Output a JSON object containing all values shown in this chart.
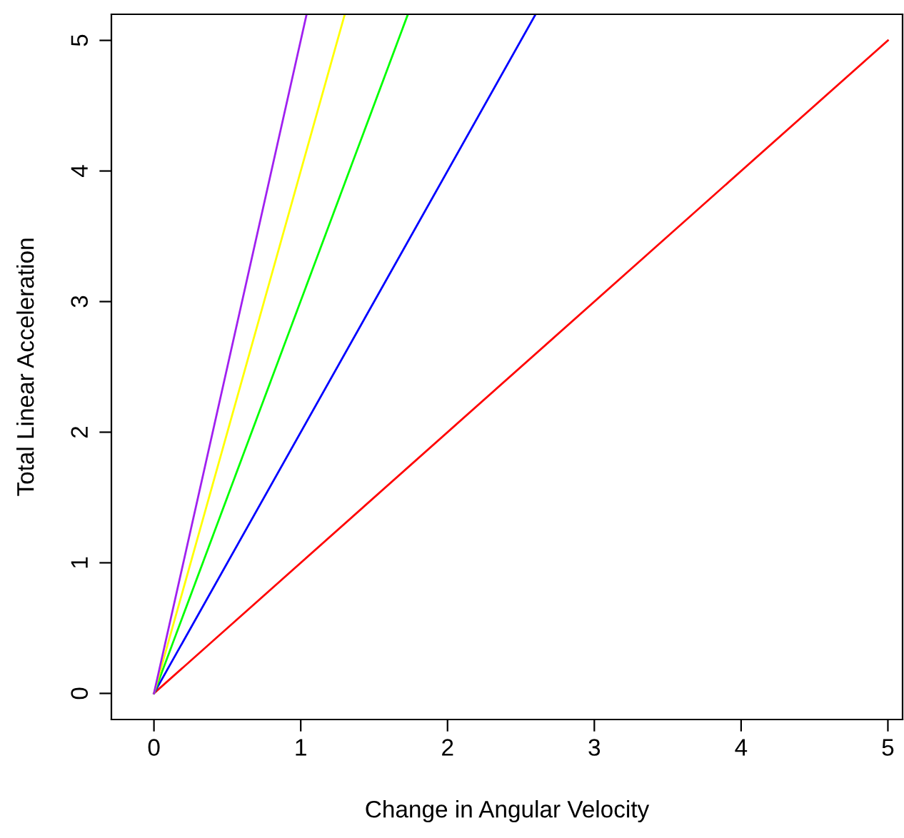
{
  "chart_data": {
    "type": "line",
    "xlabel": "Change in Angular Velocity",
    "ylabel": "Total Linear Acceleration",
    "xlim": [
      -0.29,
      5.1
    ],
    "ylim": [
      -0.2,
      5.2
    ],
    "xticks": [
      0,
      1,
      2,
      3,
      4,
      5
    ],
    "yticks": [
      0,
      1,
      2,
      3,
      4,
      5
    ],
    "grid": false,
    "legend": false,
    "marker": "none",
    "line_style": "solid",
    "series": [
      {
        "color": "#ff0000",
        "x": [
          0,
          5
        ],
        "values": [
          0,
          5
        ]
      },
      {
        "color": "#0000ff",
        "x": [
          0,
          2.6
        ],
        "values": [
          0,
          5.2
        ]
      },
      {
        "color": "#00ff00",
        "x": [
          0,
          1.73
        ],
        "values": [
          0,
          5.2
        ]
      },
      {
        "color": "#ffff00",
        "x": [
          0,
          1.3
        ],
        "values": [
          0,
          5.2
        ]
      },
      {
        "color": "#a020f0",
        "x": [
          0,
          1.04
        ],
        "values": [
          0,
          5.2
        ]
      }
    ]
  }
}
